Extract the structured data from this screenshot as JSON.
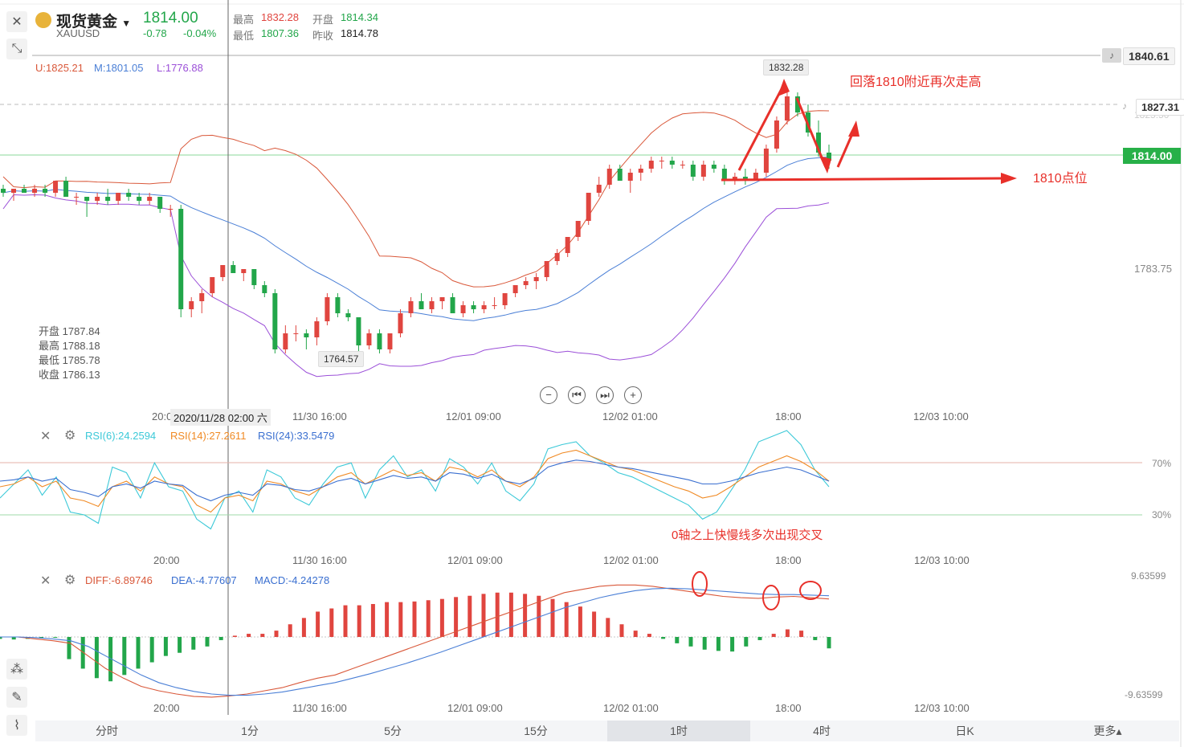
{
  "header": {
    "name": "现货黄金",
    "symbol": "XAUUSD",
    "price": "1814.00",
    "change": "-0.78",
    "change_pct": "-0.04%",
    "high_label": "最高",
    "high": "1832.28",
    "open_label": "开盘",
    "open": "1814.34",
    "low_label": "最低",
    "low": "1807.36",
    "prev_label": "昨收",
    "prev": "1814.78"
  },
  "boll": {
    "u": "U:1825.21",
    "m": "M:1801.05",
    "l": "L:1776.88"
  },
  "ohlc_box": {
    "open": "开盘 1787.84",
    "high": "最高 1788.18",
    "low": "最低 1785.78",
    "close": "收盘 1786.13"
  },
  "price_labels": {
    "top": "1840.61",
    "alert": "1827.31",
    "faded": "1825.50",
    "current": "1814.00",
    "mid": "1783.75",
    "peak": "1832.28",
    "trough": "1764.57"
  },
  "annotations": {
    "text1": "回落1810附近再次走高",
    "text2": "1810点位",
    "text3": "0轴之上快慢线多次出现交叉"
  },
  "xaxis_main": {
    "crosshair": "2020/11/28 02:00 六",
    "t1": "11/30 16:00",
    "t2": "12/01 09:00",
    "t3": "12/02 01:00",
    "t4": "18:00",
    "t5": "12/03 10:00",
    "t0": "20:0"
  },
  "xaxis_sub": {
    "t0": "20:00",
    "t1": "11/30 16:00",
    "t2": "12/01 09:00",
    "t3": "12/02 01:00",
    "t4": "18:00",
    "t5": "12/03 10:00"
  },
  "rsi": {
    "r6": "RSI(6):24.2594",
    "r14": "RSI(14):27.2611",
    "r24": "RSI(24):33.5479",
    "lvl70": "70%",
    "lvl30": "30%"
  },
  "macd": {
    "diff": "DIFF:-6.89746",
    "dea": "DEA:-4.77607",
    "macd": "MACD:-4.24278",
    "top": "9.63599",
    "bottom": "-9.63599"
  },
  "tabs": [
    "分时",
    "1分",
    "5分",
    "15分",
    "1时",
    "4时",
    "日K",
    "更多▴"
  ],
  "active_tab": "1时",
  "colors": {
    "up": "#e0453f",
    "down": "#22a64a",
    "upper": "#d9583a",
    "mid": "#4a7fd6",
    "lower": "#9b4fd8",
    "rsi6": "#3cc9d8",
    "rsi14": "#f08a24",
    "rsi24": "#3a6fd0",
    "annot": "#e8302a"
  },
  "icons": [
    "close-icon",
    "collapse-icon",
    "bell-icon",
    "settings-icon",
    "zoom-out-icon",
    "prev-icon",
    "next-icon",
    "zoom-in-icon",
    "candle-type-icon",
    "draw-icon",
    "indicator-icon",
    "gold-coin-icon"
  ],
  "chart_data": [
    {
      "type": "candlestick",
      "title": "现货黄金 XAUUSD",
      "timeframe": "1时",
      "ylim": [
        1760,
        1842
      ],
      "x_ticks": [
        "20:00",
        "11/30 16:00",
        "12/01 09:00",
        "12/02 01:00",
        "18:00",
        "12/03 10:00"
      ],
      "candles": [
        [
          1807,
          1808,
          1805,
          1806
        ],
        [
          1806,
          1807,
          1804,
          1807
        ],
        [
          1807,
          1808,
          1806,
          1806
        ],
        [
          1806,
          1808,
          1805,
          1807
        ],
        [
          1807,
          1808,
          1805,
          1806
        ],
        [
          1806,
          1809,
          1805,
          1809
        ],
        [
          1809,
          1810,
          1805,
          1805
        ],
        [
          1805,
          1806,
          1803,
          1805
        ],
        [
          1805,
          1805,
          1800,
          1804
        ],
        [
          1804,
          1806,
          1803,
          1805
        ],
        [
          1805,
          1807,
          1803,
          1804
        ],
        [
          1804,
          1806,
          1803,
          1806
        ],
        [
          1806,
          1807,
          1804,
          1805
        ],
        [
          1805,
          1806,
          1803,
          1804
        ],
        [
          1804,
          1806,
          1803,
          1805
        ],
        [
          1805,
          1805,
          1801,
          1802
        ],
        [
          1802,
          1803,
          1800,
          1802
        ],
        [
          1802,
          1803,
          1775,
          1777
        ],
        [
          1777,
          1780,
          1775,
          1779
        ],
        [
          1779,
          1782,
          1776,
          1781
        ],
        [
          1781,
          1785,
          1780,
          1785
        ],
        [
          1785,
          1788,
          1784,
          1788
        ],
        [
          1788,
          1789,
          1786,
          1786
        ],
        [
          1786,
          1787,
          1784,
          1787
        ],
        [
          1787,
          1787,
          1782,
          1783
        ],
        [
          1783,
          1784,
          1780,
          1781
        ],
        [
          1781,
          1782,
          1766,
          1767
        ],
        [
          1767,
          1773,
          1766,
          1771
        ],
        [
          1771,
          1773,
          1769,
          1771
        ],
        [
          1771,
          1772,
          1767,
          1770
        ],
        [
          1770,
          1775,
          1768,
          1774
        ],
        [
          1774,
          1781,
          1773,
          1780
        ],
        [
          1780,
          1781,
          1775,
          1776
        ],
        [
          1776,
          1777,
          1774,
          1775
        ],
        [
          1775,
          1775,
          1766,
          1768
        ],
        [
          1768,
          1772,
          1767,
          1771
        ],
        [
          1771,
          1772,
          1766,
          1767
        ],
        [
          1767,
          1771,
          1766,
          1771
        ],
        [
          1771,
          1777,
          1770,
          1776
        ],
        [
          1776,
          1780,
          1775,
          1779
        ],
        [
          1779,
          1781,
          1777,
          1777
        ],
        [
          1777,
          1780,
          1776,
          1779
        ],
        [
          1779,
          1780,
          1777,
          1780
        ],
        [
          1780,
          1781,
          1776,
          1776
        ],
        [
          1776,
          1779,
          1775,
          1778
        ],
        [
          1778,
          1779,
          1776,
          1777
        ],
        [
          1777,
          1779,
          1776,
          1778
        ],
        [
          1778,
          1780,
          1777,
          1778
        ],
        [
          1778,
          1781,
          1777,
          1781
        ],
        [
          1781,
          1783,
          1780,
          1783
        ],
        [
          1783,
          1785,
          1782,
          1784
        ],
        [
          1784,
          1786,
          1782,
          1785
        ],
        [
          1785,
          1789,
          1784,
          1789
        ],
        [
          1789,
          1792,
          1788,
          1791
        ],
        [
          1791,
          1795,
          1790,
          1795
        ],
        [
          1795,
          1799,
          1794,
          1799
        ],
        [
          1799,
          1806,
          1798,
          1806
        ],
        [
          1806,
          1810,
          1805,
          1808
        ],
        [
          1808,
          1813,
          1807,
          1812
        ],
        [
          1812,
          1813,
          1809,
          1809
        ],
        [
          1809,
          1812,
          1806,
          1811
        ],
        [
          1811,
          1813,
          1809,
          1812
        ],
        [
          1812,
          1815,
          1811,
          1814
        ],
        [
          1814,
          1815,
          1812,
          1814
        ],
        [
          1814,
          1815,
          1812,
          1813
        ],
        [
          1813,
          1814,
          1812,
          1813
        ],
        [
          1813,
          1814,
          1809,
          1810
        ],
        [
          1810,
          1814,
          1809,
          1813
        ],
        [
          1813,
          1814,
          1811,
          1812
        ],
        [
          1812,
          1813,
          1808,
          1809
        ],
        [
          1809,
          1811,
          1808,
          1810
        ],
        [
          1810,
          1812,
          1808,
          1809
        ],
        [
          1809,
          1812,
          1809,
          1811
        ],
        [
          1811,
          1818,
          1810,
          1817
        ],
        [
          1817,
          1825,
          1816,
          1824
        ],
        [
          1824,
          1832,
          1823,
          1830
        ],
        [
          1830,
          1831,
          1825,
          1826
        ],
        [
          1826,
          1828,
          1820,
          1821
        ],
        [
          1821,
          1824,
          1815,
          1816
        ],
        [
          1816,
          1818,
          1812,
          1814
        ]
      ]
    },
    {
      "type": "line",
      "title": "RSI",
      "ylim": [
        0,
        100
      ],
      "levels": [
        70,
        30
      ],
      "series": [
        {
          "name": "RSI(6)",
          "values": [
            40,
            50,
            60,
            42,
            55,
            30,
            28,
            22,
            62,
            58,
            40,
            65,
            48,
            45,
            25,
            18,
            40,
            45,
            30,
            60,
            55,
            40,
            35,
            50,
            62,
            65,
            40,
            60,
            70,
            55,
            60,
            45,
            68,
            62,
            50,
            65,
            45,
            38,
            50,
            75,
            78,
            80,
            70,
            65,
            58,
            55,
            50,
            45,
            40,
            35,
            25,
            30,
            45,
            60,
            80,
            84,
            88,
            78,
            60,
            48
          ]
        },
        {
          "name": "RSI(14)",
          "values": [
            48,
            50,
            55,
            48,
            52,
            40,
            38,
            34,
            48,
            52,
            45,
            55,
            50,
            48,
            35,
            30,
            40,
            42,
            38,
            52,
            50,
            45,
            42,
            48,
            55,
            58,
            50,
            55,
            60,
            56,
            58,
            52,
            62,
            60,
            55,
            60,
            52,
            48,
            55,
            68,
            72,
            74,
            70,
            66,
            62,
            60,
            56,
            52,
            48,
            45,
            40,
            42,
            48,
            55,
            62,
            66,
            70,
            66,
            60,
            52
          ]
        },
        {
          "name": "RSI(24)",
          "values": [
            52,
            53,
            55,
            52,
            54,
            46,
            44,
            41,
            48,
            50,
            47,
            52,
            50,
            49,
            42,
            38,
            42,
            44,
            42,
            50,
            49,
            46,
            45,
            48,
            52,
            54,
            50,
            53,
            56,
            54,
            55,
            52,
            58,
            57,
            54,
            57,
            52,
            50,
            54,
            62,
            65,
            67,
            66,
            64,
            62,
            61,
            59,
            57,
            55,
            53,
            50,
            50,
            52,
            55,
            58,
            60,
            62,
            60,
            56,
            52
          ]
        }
      ]
    },
    {
      "type": "bar+line",
      "title": "MACD",
      "ylim": [
        -9.63599,
        9.63599
      ],
      "series": [
        {
          "name": "MACD",
          "values": [
            -0.3,
            -0.4,
            -0.3,
            -0.2,
            -0.1,
            -3.5,
            -5,
            -6.5,
            -7,
            -6,
            -5,
            -4,
            -3,
            -2.5,
            -2,
            -1.5,
            -0.5,
            0.2,
            0.5,
            0.5,
            1,
            2,
            3,
            4,
            4.5,
            5,
            5,
            5.2,
            5.5,
            5.5,
            5.6,
            5.8,
            6,
            6.3,
            6.5,
            6.8,
            7,
            7,
            6.8,
            6.5,
            6,
            5.5,
            4.8,
            4,
            3,
            2,
            1,
            0.5,
            -0.3,
            -1,
            -1.5,
            -2,
            -2.2,
            -2.3,
            -1.5,
            -0.5,
            0.5,
            1.2,
            1,
            -0.5,
            -1.8
          ]
        },
        {
          "name": "DIFF",
          "values": [
            0,
            0,
            -0.3,
            -0.6,
            -1,
            -3,
            -5,
            -6.5,
            -7.8,
            -8.5,
            -9,
            -9.4,
            -9.5,
            -9.3,
            -9,
            -8.5,
            -8,
            -7.2,
            -6.5,
            -6,
            -5,
            -4,
            -3,
            -2,
            -1,
            0,
            1,
            2,
            3,
            4,
            5,
            6,
            7,
            7.5,
            8,
            8.2,
            8.2,
            8,
            7.6,
            7.2,
            6.8,
            6.4,
            6.2,
            6.1,
            6.3,
            6.4,
            6.2,
            6
          ]
        },
        {
          "name": "DEA",
          "values": [
            0,
            0,
            -0.1,
            -0.3,
            -0.6,
            -1.5,
            -3,
            -4.5,
            -6,
            -7.2,
            -8,
            -8.6,
            -9,
            -9.2,
            -9.2,
            -9,
            -8.7,
            -8.2,
            -7.7,
            -7.2,
            -6.5,
            -5.8,
            -5,
            -4.2,
            -3.3,
            -2.4,
            -1.4,
            -0.4,
            0.6,
            1.6,
            2.6,
            3.6,
            4.6,
            5.4,
            6.2,
            6.8,
            7.3,
            7.6,
            7.7,
            7.6,
            7.4,
            7.2,
            7,
            6.8,
            6.7,
            6.7,
            6.6,
            6.5
          ]
        }
      ]
    }
  ]
}
